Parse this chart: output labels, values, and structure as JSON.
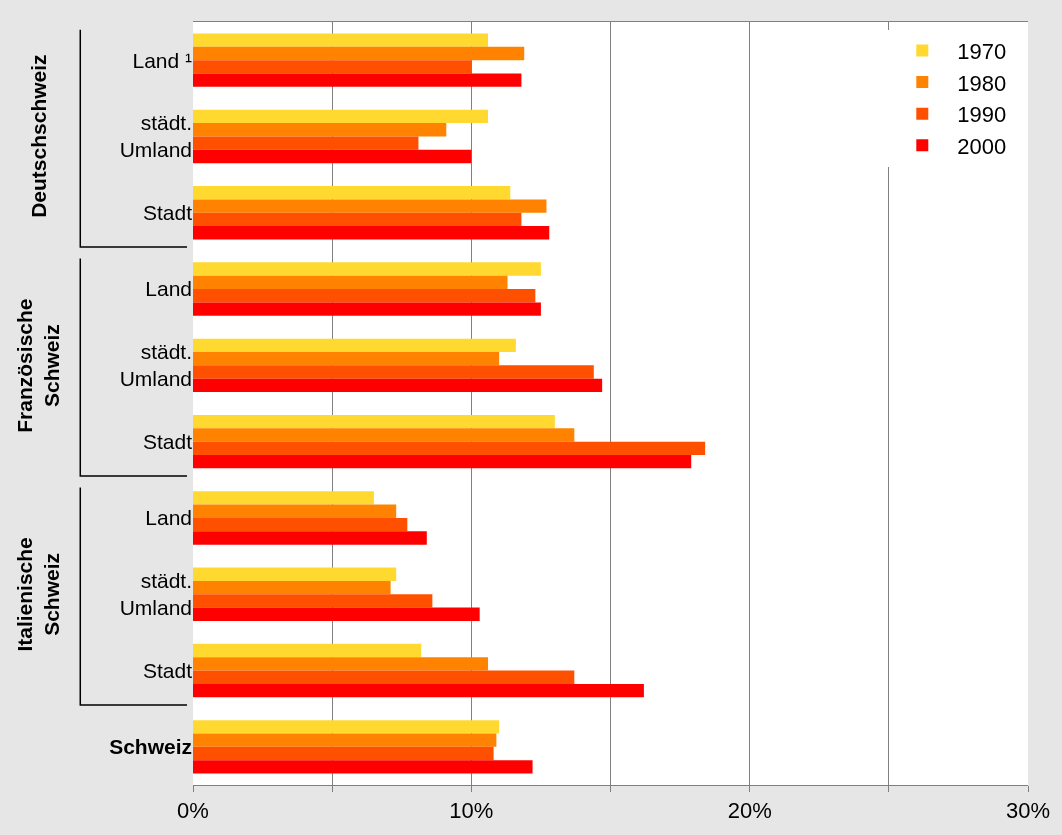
{
  "chart_data": {
    "type": "bar",
    "orientation": "horizontal",
    "categories": [
      "Land ¹",
      "städt.\nUmland",
      "Stadt",
      "Land",
      "städt.\nUmland",
      "Stadt",
      "Land",
      "städt.\nUmland",
      "Stadt",
      "Schweiz"
    ],
    "series": [
      {
        "name": "1970",
        "color": "#ffd92f",
        "values": [
          10.6,
          10.6,
          11.4,
          12.5,
          11.6,
          13.0,
          6.5,
          7.3,
          8.2,
          11.0
        ]
      },
      {
        "name": "1980",
        "color": "#ff8300",
        "values": [
          11.9,
          9.1,
          12.7,
          11.3,
          11.0,
          13.7,
          7.3,
          7.1,
          10.6,
          10.9
        ]
      },
      {
        "name": "1990",
        "color": "#ff5000",
        "values": [
          10.0,
          8.1,
          11.8,
          12.3,
          14.4,
          18.4,
          7.7,
          8.6,
          13.7,
          10.8
        ]
      },
      {
        "name": "2000",
        "color": "#ff0000",
        "values": [
          11.8,
          10.0,
          12.8,
          12.5,
          14.7,
          17.9,
          8.4,
          10.3,
          16.2,
          12.2
        ]
      }
    ],
    "annotations": [
      "Deutschschweiz",
      "Französische\nSchweiz",
      "Italienische\nSchweiz"
    ],
    "xlim": [
      0,
      30
    ],
    "xticks": [
      {
        "value": 0,
        "label": "0%"
      },
      {
        "value": 5,
        "label": null
      },
      {
        "value": 10,
        "label": "10%"
      },
      {
        "value": 15,
        "label": null
      },
      {
        "value": 20,
        "label": "20%"
      },
      {
        "value": 25,
        "label": null
      },
      {
        "value": 30,
        "label": "30%"
      }
    ],
    "grid": "x",
    "legend": "top right"
  }
}
